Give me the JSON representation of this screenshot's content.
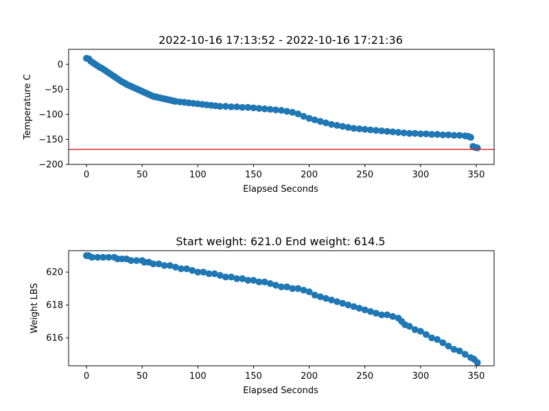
{
  "chart_data": [
    {
      "type": "scatter",
      "title": "2022-10-16 17:13:52 - 2022-10-16 17:21:36",
      "xlabel": "Elapsed Seconds",
      "ylabel": "Temperature C",
      "xlim": [
        -16,
        366
      ],
      "ylim": [
        -200,
        30
      ],
      "xticks": [
        0,
        50,
        100,
        150,
        200,
        250,
        300,
        350
      ],
      "yticks": [
        0,
        -50,
        -100,
        -150,
        -200
      ],
      "xtick_labels": [
        "0",
        "50",
        "100",
        "150",
        "200",
        "250",
        "300",
        "350"
      ],
      "ytick_labels": [
        "0",
        "−50",
        "−100",
        "−150",
        "−200"
      ],
      "grid": false,
      "marker_color": "#1f77b4",
      "reference_line": {
        "y": -170,
        "color": "#d62728"
      },
      "points": [
        [
          0,
          12
        ],
        [
          2,
          11
        ],
        [
          4,
          6
        ],
        [
          6,
          3
        ],
        [
          8,
          0
        ],
        [
          10,
          -3
        ],
        [
          12,
          -6
        ],
        [
          14,
          -8
        ],
        [
          16,
          -11
        ],
        [
          18,
          -14
        ],
        [
          20,
          -17
        ],
        [
          22,
          -20
        ],
        [
          24,
          -23
        ],
        [
          26,
          -26
        ],
        [
          28,
          -29
        ],
        [
          30,
          -32
        ],
        [
          32,
          -35
        ],
        [
          34,
          -37
        ],
        [
          36,
          -40
        ],
        [
          38,
          -42
        ],
        [
          40,
          -44
        ],
        [
          42,
          -46
        ],
        [
          44,
          -48
        ],
        [
          46,
          -50
        ],
        [
          48,
          -52
        ],
        [
          50,
          -54
        ],
        [
          52,
          -56
        ],
        [
          54,
          -58
        ],
        [
          56,
          -60
        ],
        [
          58,
          -62
        ],
        [
          60,
          -64
        ],
        [
          62,
          -65
        ],
        [
          64,
          -66
        ],
        [
          66,
          -67
        ],
        [
          68,
          -68
        ],
        [
          70,
          -69
        ],
        [
          72,
          -70
        ],
        [
          74,
          -71
        ],
        [
          76,
          -72
        ],
        [
          78,
          -73
        ],
        [
          80,
          -74
        ],
        [
          84,
          -75
        ],
        [
          88,
          -76
        ],
        [
          92,
          -77
        ],
        [
          96,
          -78
        ],
        [
          100,
          -79
        ],
        [
          104,
          -80
        ],
        [
          108,
          -81
        ],
        [
          112,
          -82
        ],
        [
          116,
          -83
        ],
        [
          120,
          -84
        ],
        [
          125,
          -84
        ],
        [
          130,
          -85
        ],
        [
          135,
          -85
        ],
        [
          140,
          -86
        ],
        [
          145,
          -86
        ],
        [
          150,
          -87
        ],
        [
          155,
          -88
        ],
        [
          160,
          -89
        ],
        [
          165,
          -90
        ],
        [
          170,
          -91
        ],
        [
          175,
          -92
        ],
        [
          180,
          -94
        ],
        [
          185,
          -96
        ],
        [
          190,
          -99
        ],
        [
          195,
          -104
        ],
        [
          200,
          -108
        ],
        [
          205,
          -111
        ],
        [
          210,
          -114
        ],
        [
          215,
          -117
        ],
        [
          220,
          -120
        ],
        [
          225,
          -122
        ],
        [
          230,
          -124
        ],
        [
          235,
          -126
        ],
        [
          240,
          -128
        ],
        [
          245,
          -129
        ],
        [
          250,
          -130
        ],
        [
          255,
          -131
        ],
        [
          260,
          -132
        ],
        [
          265,
          -133
        ],
        [
          270,
          -134
        ],
        [
          275,
          -135
        ],
        [
          280,
          -136
        ],
        [
          285,
          -137
        ],
        [
          290,
          -138
        ],
        [
          295,
          -138
        ],
        [
          300,
          -139
        ],
        [
          305,
          -139
        ],
        [
          310,
          -140
        ],
        [
          315,
          -140
        ],
        [
          320,
          -141
        ],
        [
          325,
          -141
        ],
        [
          330,
          -142
        ],
        [
          335,
          -142
        ],
        [
          340,
          -143
        ],
        [
          343,
          -144
        ],
        [
          345,
          -146
        ],
        [
          347,
          -164
        ],
        [
          349,
          -166
        ],
        [
          351,
          -167
        ]
      ]
    },
    {
      "type": "scatter",
      "title": "Start weight: 621.0 End weight: 614.5",
      "xlabel": "Elapsed Seconds",
      "ylabel": "Weight LBS",
      "xlim": [
        -16,
        366
      ],
      "ylim": [
        614.3,
        621.3
      ],
      "xticks": [
        0,
        50,
        100,
        150,
        200,
        250,
        300,
        350
      ],
      "yticks": [
        616,
        618,
        620
      ],
      "xtick_labels": [
        "0",
        "50",
        "100",
        "150",
        "200",
        "250",
        "300",
        "350"
      ],
      "ytick_labels": [
        "616",
        "618",
        "620"
      ],
      "grid": false,
      "marker_color": "#1f77b4",
      "points": [
        [
          0,
          621.0
        ],
        [
          2,
          621.0
        ],
        [
          5,
          620.9
        ],
        [
          10,
          620.9
        ],
        [
          15,
          620.9
        ],
        [
          20,
          620.9
        ],
        [
          25,
          620.9
        ],
        [
          28,
          620.8
        ],
        [
          32,
          620.8
        ],
        [
          36,
          620.8
        ],
        [
          40,
          620.7
        ],
        [
          45,
          620.7
        ],
        [
          50,
          620.7
        ],
        [
          52,
          620.6
        ],
        [
          56,
          620.6
        ],
        [
          60,
          620.5
        ],
        [
          65,
          620.5
        ],
        [
          70,
          620.4
        ],
        [
          75,
          620.4
        ],
        [
          80,
          620.3
        ],
        [
          85,
          620.2
        ],
        [
          90,
          620.2
        ],
        [
          95,
          620.1
        ],
        [
          100,
          620.0
        ],
        [
          105,
          620.0
        ],
        [
          110,
          619.9
        ],
        [
          115,
          619.9
        ],
        [
          120,
          619.8
        ],
        [
          125,
          619.7
        ],
        [
          130,
          619.7
        ],
        [
          135,
          619.6
        ],
        [
          140,
          619.6
        ],
        [
          145,
          619.5
        ],
        [
          150,
          619.5
        ],
        [
          155,
          619.4
        ],
        [
          160,
          619.4
        ],
        [
          165,
          619.3
        ],
        [
          170,
          619.2
        ],
        [
          175,
          619.1
        ],
        [
          180,
          619.1
        ],
        [
          185,
          619.0
        ],
        [
          190,
          619.0
        ],
        [
          195,
          618.9
        ],
        [
          200,
          618.8
        ],
        [
          205,
          618.6
        ],
        [
          210,
          618.5
        ],
        [
          215,
          618.4
        ],
        [
          220,
          618.3
        ],
        [
          225,
          618.2
        ],
        [
          230,
          618.1
        ],
        [
          235,
          618.0
        ],
        [
          240,
          617.9
        ],
        [
          245,
          617.8
        ],
        [
          250,
          617.7
        ],
        [
          255,
          617.6
        ],
        [
          260,
          617.5
        ],
        [
          265,
          617.4
        ],
        [
          270,
          617.4
        ],
        [
          275,
          617.3
        ],
        [
          280,
          617.2
        ],
        [
          283,
          617.0
        ],
        [
          286,
          616.8
        ],
        [
          290,
          616.7
        ],
        [
          295,
          616.5
        ],
        [
          300,
          616.4
        ],
        [
          305,
          616.2
        ],
        [
          310,
          616.0
        ],
        [
          315,
          615.9
        ],
        [
          320,
          615.7
        ],
        [
          325,
          615.5
        ],
        [
          330,
          615.3
        ],
        [
          335,
          615.2
        ],
        [
          340,
          615.0
        ],
        [
          345,
          614.8
        ],
        [
          348,
          614.7
        ],
        [
          351,
          614.5
        ]
      ]
    }
  ]
}
